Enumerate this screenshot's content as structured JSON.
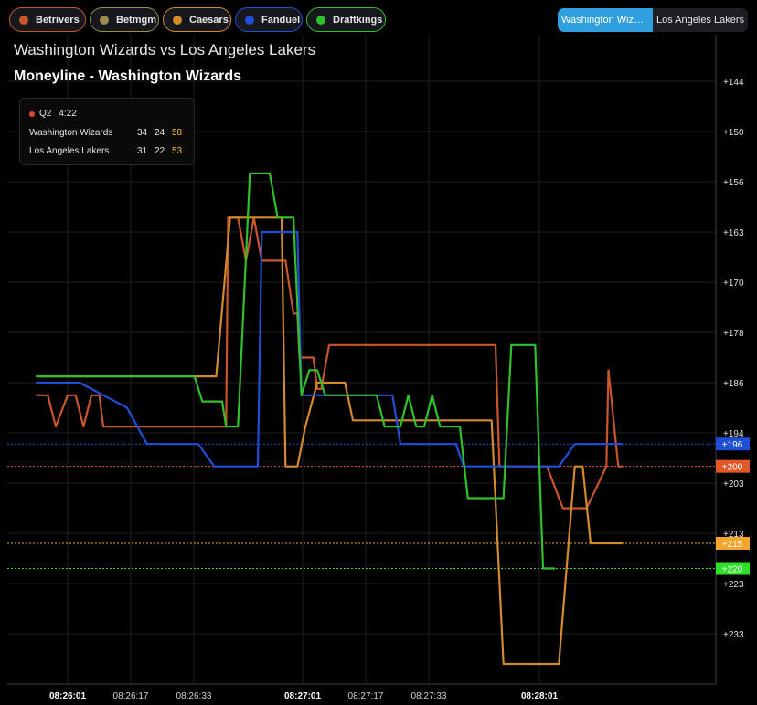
{
  "books": [
    {
      "label": "Betrivers",
      "color": "#c9562b"
    },
    {
      "label": "Betmgm",
      "color": "#9c8c4e"
    },
    {
      "label": "Caesars",
      "color": "#d18a2c"
    },
    {
      "label": "Fanduel",
      "color": "#1f4fd6"
    },
    {
      "label": "Draftkings",
      "color": "#30c02a"
    }
  ],
  "team_toggle": {
    "active": "Washington Wizar...",
    "inactive": "Los Angeles Lakers"
  },
  "title": "Washington Wizards vs Los Angeles Lakers",
  "subtitle": "Moneyline - Washington Wizards",
  "scoreboard": {
    "period": "Q2",
    "clock": "4:22",
    "rows": [
      {
        "team": "Washington Wizards",
        "q1": "34",
        "q2": "24",
        "total": "58"
      },
      {
        "team": "Los Angeles Lakers",
        "q1": "31",
        "q2": "22",
        "total": "53"
      }
    ]
  },
  "chart_data": {
    "type": "line",
    "y_axis_inverted": true,
    "y_ticks": [
      "+144",
      "+150",
      "+156",
      "+163",
      "+170",
      "+178",
      "+186",
      "+194",
      "+203",
      "+213",
      "+223",
      "+233"
    ],
    "x_ticks": [
      {
        "label": "08:26:01",
        "bold": true
      },
      {
        "label": "08:26:17",
        "bold": false
      },
      {
        "label": "08:26:33",
        "bold": false
      },
      {
        "label": "08:27:01",
        "bold": true
      },
      {
        "label": "08:27:17",
        "bold": false
      },
      {
        "label": "08:27:33",
        "bold": false
      },
      {
        "label": "08:28:01",
        "bold": true
      }
    ],
    "current_values": [
      {
        "label": "+196",
        "color": "#1f4fd6"
      },
      {
        "label": "+200",
        "color": "#e2572a"
      },
      {
        "label": "+215",
        "color": "#f2a52a"
      },
      {
        "label": "+220",
        "color": "#2fe02a"
      }
    ],
    "series": [
      {
        "name": "Betrivers",
        "color": "#c9562b",
        "points": [
          [
            -8,
            188
          ],
          [
            -5,
            188
          ],
          [
            -3,
            193
          ],
          [
            0,
            188
          ],
          [
            2,
            188
          ],
          [
            4,
            193
          ],
          [
            6,
            188
          ],
          [
            8,
            188
          ],
          [
            9,
            193
          ],
          [
            35,
            193
          ],
          [
            40,
            193
          ],
          [
            40.5,
            161
          ],
          [
            43,
            161
          ],
          [
            45,
            167
          ],
          [
            47,
            161
          ],
          [
            49,
            167
          ],
          [
            53,
            167
          ],
          [
            55,
            167
          ],
          [
            57,
            175
          ],
          [
            58,
            175
          ],
          [
            58.5,
            182
          ],
          [
            62,
            182
          ],
          [
            63,
            187
          ],
          [
            64,
            187
          ],
          [
            66,
            180
          ],
          [
            75,
            180
          ],
          [
            80,
            180
          ],
          [
            86,
            180
          ],
          [
            102,
            180
          ],
          [
            106,
            180
          ],
          [
            108,
            180
          ],
          [
            109,
            200
          ],
          [
            120,
            200
          ],
          [
            121,
            200
          ],
          [
            125,
            208
          ],
          [
            131,
            208
          ],
          [
            136,
            200
          ],
          [
            136.5,
            184
          ],
          [
            139,
            200
          ],
          [
            140,
            200
          ]
        ]
      },
      {
        "name": "Caesars",
        "color": "#d18a2c",
        "points": [
          [
            -8,
            185
          ],
          [
            20,
            185
          ],
          [
            37,
            185
          ],
          [
            37.5,
            185
          ],
          [
            41,
            161
          ],
          [
            43,
            161
          ],
          [
            47,
            161
          ],
          [
            51,
            161
          ],
          [
            54,
            161
          ],
          [
            55,
            200
          ],
          [
            58,
            200
          ],
          [
            60,
            193
          ],
          [
            63,
            186
          ],
          [
            66,
            186
          ],
          [
            70,
            186
          ],
          [
            72,
            192
          ],
          [
            80,
            192
          ],
          [
            102,
            192
          ],
          [
            105,
            192
          ],
          [
            107,
            192
          ],
          [
            110,
            239
          ],
          [
            120,
            239
          ],
          [
            124,
            239
          ],
          [
            128,
            200
          ],
          [
            130,
            200
          ],
          [
            132,
            215
          ],
          [
            140,
            215
          ]
        ]
      },
      {
        "name": "Fanduel",
        "color": "#1f4fd6",
        "points": [
          [
            -8,
            186
          ],
          [
            -5,
            186
          ],
          [
            -1,
            186
          ],
          [
            3,
            186
          ],
          [
            15,
            190
          ],
          [
            20,
            196
          ],
          [
            29,
            196
          ],
          [
            33,
            196
          ],
          [
            37,
            200
          ],
          [
            44,
            200
          ],
          [
            48,
            200
          ],
          [
            49,
            163
          ],
          [
            51,
            163
          ],
          [
            55,
            163
          ],
          [
            58,
            163
          ],
          [
            59,
            188
          ],
          [
            62,
            188
          ],
          [
            64,
            188
          ],
          [
            68,
            188
          ],
          [
            72,
            188
          ],
          [
            76,
            188
          ],
          [
            82,
            188
          ],
          [
            84,
            196
          ],
          [
            92,
            196
          ],
          [
            98,
            196
          ],
          [
            100,
            200
          ],
          [
            110,
            200
          ],
          [
            120,
            200
          ],
          [
            124,
            200
          ],
          [
            128,
            196
          ],
          [
            140,
            196
          ]
        ]
      },
      {
        "name": "Draftkings",
        "color": "#30c02a",
        "points": [
          [
            -8,
            185
          ],
          [
            20,
            185
          ],
          [
            32,
            185
          ],
          [
            34,
            189
          ],
          [
            36,
            189
          ],
          [
            39,
            189
          ],
          [
            40,
            193
          ],
          [
            42,
            193
          ],
          [
            43,
            193
          ],
          [
            46,
            155
          ],
          [
            48,
            155
          ],
          [
            51,
            155
          ],
          [
            53,
            161
          ],
          [
            55,
            161
          ],
          [
            57,
            161
          ],
          [
            59,
            188
          ],
          [
            61,
            184
          ],
          [
            63,
            184
          ],
          [
            65,
            188
          ],
          [
            67,
            188
          ],
          [
            70,
            188
          ],
          [
            73,
            188
          ],
          [
            78,
            188
          ],
          [
            80,
            193
          ],
          [
            84,
            193
          ],
          [
            86,
            188
          ],
          [
            88,
            193
          ],
          [
            90,
            193
          ],
          [
            92,
            188
          ],
          [
            94,
            193
          ],
          [
            97,
            193
          ],
          [
            99,
            193
          ],
          [
            101,
            206
          ],
          [
            106,
            206
          ],
          [
            110,
            206
          ],
          [
            112,
            180
          ],
          [
            117,
            180
          ],
          [
            118,
            180
          ],
          [
            120,
            220
          ],
          [
            123,
            220
          ]
        ]
      }
    ]
  }
}
